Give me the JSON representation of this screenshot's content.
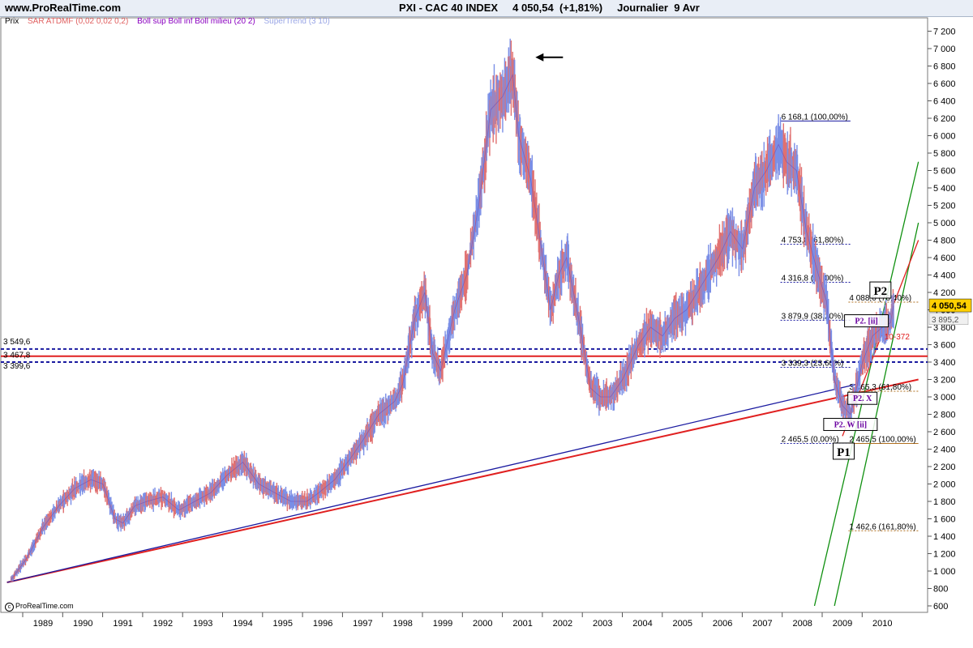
{
  "header": {
    "site": "www.ProRealTime.com",
    "title": "PXI - CAC 40 INDEX     4 050,54  (+1,81%)     Journalier  9 Avr"
  },
  "legend": {
    "items": [
      {
        "label": "Prix",
        "color": "#000000"
      },
      {
        "label": "SAR ATDMF (0,02 0,02 0,2)",
        "color": "#e06060"
      },
      {
        "label": "Boll sup Boll inf Boll milieu (20 2)",
        "color": "#8a00c0"
      },
      {
        "label": "SuperTrend (3 10)",
        "color": "#9aa6e6"
      }
    ]
  },
  "copyright": "ProRealTime.com",
  "colors": {
    "header_bg": "#e9eef6",
    "price_up": "#7a8ee6",
    "price_down": "#e07070",
    "red_line": "#e02020",
    "blue_line": "#1a1aa0",
    "green_line": "#109010",
    "last_price_bg": "#ffd000"
  },
  "chart_data": {
    "type": "line",
    "title": "PXI - CAC 40 INDEX",
    "ylim": [
      600,
      7200
    ],
    "y_ticks": [
      600,
      800,
      1000,
      1200,
      1400,
      1600,
      1800,
      2000,
      2200,
      2400,
      2600,
      2800,
      3000,
      3200,
      3400,
      3600,
      3800,
      4000,
      4200,
      4400,
      4600,
      4800,
      5000,
      5200,
      5400,
      5600,
      5800,
      6000,
      6200,
      6400,
      6600,
      6800,
      7000,
      7200
    ],
    "y_tick_labels": [
      "600",
      "800",
      "1 000",
      "1 200",
      "1 400",
      "1 600",
      "1 800",
      "2 000",
      "2 200",
      "2 400",
      "2 600",
      "2 800",
      "3 000",
      "3 200",
      "3 400",
      "3 600",
      "3 800",
      "4 000",
      "4 200",
      "4 400",
      "4 600",
      "4 800",
      "5 000",
      "5 200",
      "5 400",
      "5 600",
      "5 800",
      "6 000",
      "6 200",
      "6 400",
      "6 600",
      "6 800",
      "7 000",
      "7 200"
    ],
    "x_labels": [
      "1989",
      "1990",
      "1991",
      "1992",
      "1993",
      "1994",
      "1995",
      "1996",
      "1997",
      "1998",
      "1999",
      "2000",
      "2001",
      "2002",
      "2003",
      "2004",
      "2005",
      "2006",
      "2007",
      "2008",
      "2009",
      "2010"
    ],
    "series": [
      {
        "x": [
          1988.2,
          1988.6,
          1989.0,
          1989.4,
          1989.8,
          1990.2,
          1990.5,
          1990.8,
          1991.0,
          1991.3,
          1991.6,
          1992.0,
          1992.4,
          1992.8,
          1993.2,
          1993.6,
          1994.0,
          1994.4,
          1994.8,
          1995.2,
          1995.6,
          1995.9,
          1996.3,
          1996.7,
          1997.0,
          1997.4,
          1997.8,
          1998.0,
          1998.3,
          1998.55,
          1998.75,
          1998.95,
          1999.3,
          1999.6,
          1999.9,
          2000.2,
          2000.5,
          2000.75,
          2000.9,
          2001.2,
          2001.5,
          2001.7,
          2001.9,
          2002.1,
          2002.4,
          2002.7,
          2002.95,
          2003.2,
          2003.5,
          2003.9,
          2004.2,
          2004.5,
          2004.8,
          2005.1,
          2005.5,
          2005.9,
          2006.2,
          2006.5,
          2006.8,
          2007.1,
          2007.4,
          2007.6,
          2007.85,
          2008.1,
          2008.4,
          2008.6,
          2008.8,
          2009.0,
          2009.2,
          2009.5,
          2009.75,
          2010.0,
          2010.2,
          2010.28
        ],
        "values": [
          900,
          1150,
          1500,
          1750,
          1950,
          2050,
          2000,
          1600,
          1550,
          1750,
          1800,
          1850,
          1700,
          1800,
          1900,
          2100,
          2250,
          2000,
          1900,
          1800,
          1800,
          1900,
          2050,
          2300,
          2500,
          2800,
          2950,
          3150,
          3900,
          4200,
          3500,
          3300,
          4000,
          4400,
          5200,
          6300,
          6450,
          6700,
          6000,
          5500,
          4600,
          4000,
          4400,
          4600,
          3900,
          3100,
          3000,
          3000,
          3200,
          3600,
          3800,
          3700,
          3900,
          4000,
          4300,
          4600,
          4900,
          4700,
          5400,
          5600,
          5900,
          5700,
          5600,
          4900,
          4400,
          4100,
          3200,
          2900,
          2800,
          3400,
          3700,
          3800,
          3850,
          4050
        ]
      }
    ],
    "last_price": 4050.54,
    "last_price_label": "4 050,54",
    "stop_value": 3895.2,
    "stop_value_label": "3 895,2",
    "horizontal_lines": [
      {
        "value": 3549.6,
        "label": "3 549,6",
        "style": "dotted",
        "color": "#1a1aa0"
      },
      {
        "value": 3467.8,
        "label": "3 467,8",
        "style": "solid",
        "color": "#e02020"
      },
      {
        "value": 3399.6,
        "label": "3 399,6",
        "style": "dotted",
        "color": "#1a1aa0"
      }
    ],
    "fibonacci_upper": {
      "x_start": 2007.45,
      "x_end": 2009.2,
      "levels": [
        {
          "value": 6168.1,
          "label": "6 168,1 (100,00%)"
        },
        {
          "value": 4753.8,
          "label": "4 753,8 (61,80%)"
        },
        {
          "value": 4316.8,
          "label": "4 316,8 (50,00%)"
        },
        {
          "value": 3879.9,
          "label": "3 879,9 (38,20%)"
        },
        {
          "value": 3339.3,
          "label": "3 339,3 (23,60%)"
        },
        {
          "value": 2465.5,
          "label": "2 465,5 (0,00%)"
        }
      ]
    },
    "fibonacci_lower": {
      "x_start": 2009.15,
      "x_end": 2010.9,
      "levels": [
        {
          "value": 4088.0,
          "label": "4 088,0 (76,40%)"
        },
        {
          "value": 3065.3,
          "label": "3 065,3 (61,80%)"
        },
        {
          "value": 2465.5,
          "label": "2 465,5 (100,00%)"
        },
        {
          "value": 1462.6,
          "label": "1 462,6 (161,80%)"
        }
      ]
    },
    "trendlines": [
      {
        "name": "red",
        "from": [
          1988.1,
          870
        ],
        "to": [
          2010.9,
          3200
        ],
        "color": "#e02020"
      },
      {
        "name": "blue",
        "from": [
          1988.1,
          870
        ],
        "to": [
          2009.4,
          3150
        ],
        "color": "#1a1aa0"
      },
      {
        "name": "green1",
        "from": [
          2008.3,
          600
        ],
        "to": [
          2010.9,
          5700
        ],
        "color": "#109010"
      },
      {
        "name": "green2",
        "from": [
          2008.8,
          600
        ],
        "to": [
          2010.9,
          5000
        ],
        "color": "#109010"
      },
      {
        "name": "red-steep",
        "from": [
          2009.0,
          2550
        ],
        "to": [
          2010.9,
          4800
        ],
        "color": "#e02020"
      }
    ],
    "wave_labels": [
      {
        "text": "P1",
        "x": 2009.03,
        "y": 2340
      },
      {
        "text": "P2",
        "x": 2009.95,
        "y": 4190
      },
      {
        "text": "P2. W [ii]",
        "x": 2009.2,
        "y": 2670
      },
      {
        "text": "P2. X",
        "x": 2009.5,
        "y": 2970
      },
      {
        "text": "P2. [ii]",
        "x": 2009.6,
        "y": 3860
      }
    ],
    "annotation_value": "10-372",
    "arrow_x": 2001.4,
    "arrow_y": 6900
  }
}
